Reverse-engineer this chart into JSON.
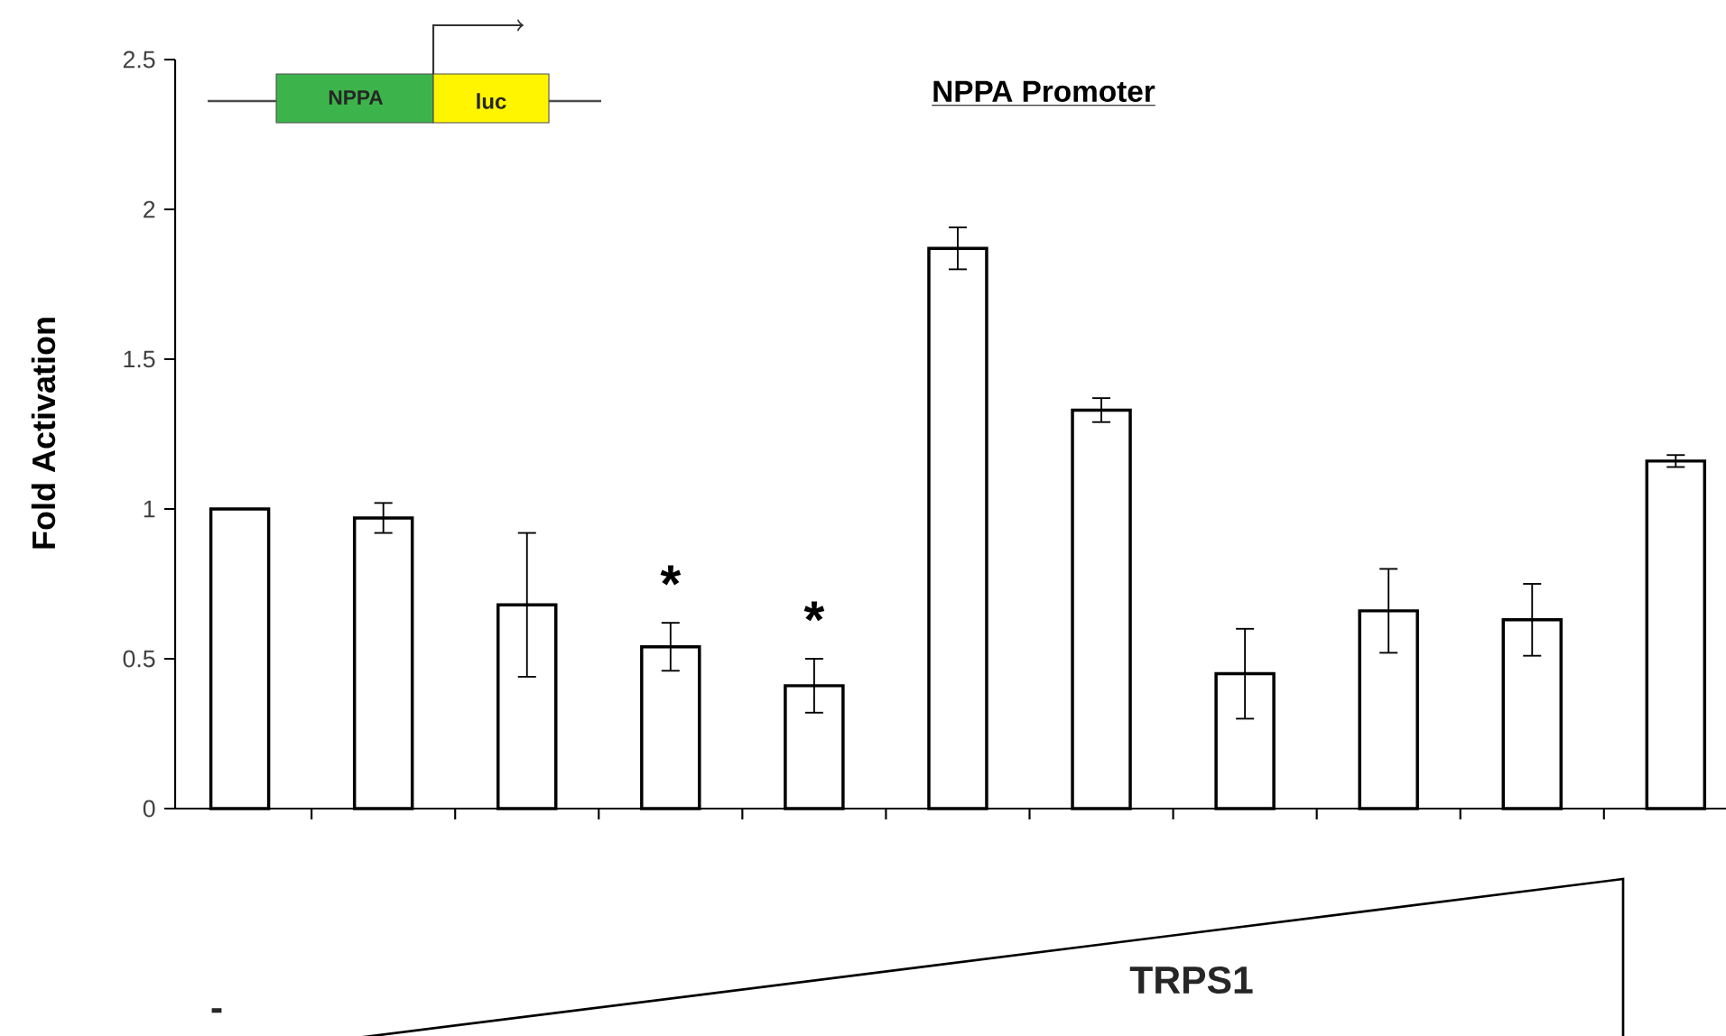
{
  "chart_data": {
    "type": "bar",
    "title": "NPPA Promoter",
    "ylabel": "Fold Activation",
    "categories": [
      null,
      null,
      null,
      null,
      null,
      null,
      null,
      null,
      null,
      null,
      null
    ],
    "values": [
      1.0,
      0.97,
      0.68,
      0.54,
      0.41,
      1.87,
      1.33,
      0.45,
      0.66,
      0.63,
      1.16
    ],
    "errors": [
      null,
      0.05,
      0.24,
      0.08,
      0.09,
      0.07,
      0.04,
      0.15,
      0.14,
      0.12,
      0.02
    ],
    "value_labels": [
      null,
      null,
      null,
      "*",
      "*",
      null,
      null,
      null,
      null,
      null,
      null
    ],
    "color": "#ffffff",
    "ylim": [
      0,
      2.5
    ],
    "yticks": [
      0,
      0.5,
      1,
      1.5,
      2,
      2.5
    ],
    "annotations": [
      "NPPA",
      "luc",
      "TRPS1",
      "-"
    ]
  }
}
